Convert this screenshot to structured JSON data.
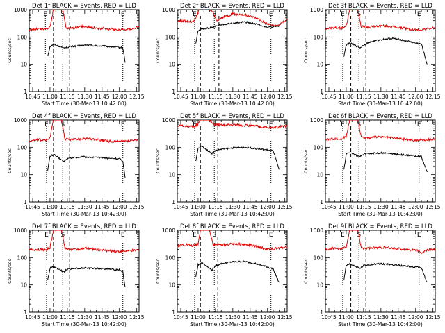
{
  "figure": {
    "title_suffix": "BLACK = Events, RED = LLD",
    "xlabel": "Start Time (30-Mar-13 10:42:00)",
    "ylabel": "Counts/sec",
    "x_ticks": [
      "10:45",
      "11:00",
      "11:15",
      "11:30",
      "11:45",
      "12:00",
      "12:15"
    ],
    "y_ticks": [
      "1",
      "10",
      "100",
      "1000"
    ],
    "marker_labels": {
      "start": "E",
      "s": "S",
      "end": "E"
    },
    "colors": {
      "events": "#000000",
      "lld": "#e00000",
      "axes": "#000000",
      "background": "#ffffff"
    }
  },
  "chart_data": [
    {
      "type": "line",
      "detector": "Det 1f",
      "title": "Det 1f BLACK = Events, RED = LLD",
      "xlabel": "Start Time (30-Mar-13 10:42:00)",
      "ylabel": "Counts/sec",
      "log_y": true,
      "ylim": [
        1,
        1000
      ],
      "x_range": [
        "10:42",
        "12:17"
      ],
      "vlines": {
        "dotted": [
          "10:56",
          "11:11",
          "12:03"
        ],
        "dashed": [
          "11:03",
          "11:17"
        ]
      },
      "series": [
        {
          "name": "Events",
          "color": "#000000",
          "gap": [
            "11:04",
            "11:12"
          ],
          "x": [
            "10:58",
            "11:00",
            "11:03",
            "11:12",
            "11:14",
            "11:20",
            "11:30",
            "11:40",
            "11:50",
            "11:58",
            "12:03",
            "12:05"
          ],
          "y": [
            20,
            45,
            55,
            40,
            42,
            45,
            50,
            48,
            45,
            42,
            40,
            12
          ]
        },
        {
          "name": "LLD",
          "color": "#e00000",
          "x": [
            "10:42",
            "10:50",
            "10:56",
            "11:00",
            "11:03",
            "11:05",
            "11:07",
            "11:09",
            "11:11",
            "11:14",
            "11:20",
            "11:30",
            "11:40",
            "11:50",
            "12:00",
            "12:10",
            "12:17"
          ],
          "y": [
            180,
            200,
            190,
            230,
            1000,
            1000,
            1000,
            1000,
            1000,
            210,
            220,
            250,
            210,
            200,
            180,
            200,
            230
          ]
        }
      ]
    },
    {
      "type": "line",
      "detector": "Det 2f",
      "title": "Det 2f BLACK = Events, RED = LLD",
      "xlabel": "Start Time (30-Mar-13 10:42:00)",
      "ylabel": "Counts/sec",
      "log_y": true,
      "ylim": [
        1,
        1000
      ],
      "x_range": [
        "10:42",
        "12:17"
      ],
      "vlines": {
        "dotted": [
          "10:57",
          "11:14",
          "12:03"
        ],
        "dashed": [
          "11:02",
          "11:18"
        ]
      },
      "series": [
        {
          "name": "Events",
          "color": "#000000",
          "gap": [
            "11:04",
            "11:12"
          ],
          "x": [
            "10:58",
            "11:00",
            "11:03",
            "11:12",
            "11:15",
            "11:20",
            "11:30",
            "11:40",
            "11:50",
            "12:00",
            "12:05",
            "12:10"
          ],
          "y": [
            60,
            170,
            200,
            220,
            250,
            280,
            320,
            360,
            300,
            230,
            230,
            250
          ]
        },
        {
          "name": "LLD",
          "color": "#e00000",
          "x": [
            "10:42",
            "10:50",
            "10:56",
            "10:59",
            "11:01",
            "11:03",
            "11:06",
            "11:09",
            "11:12",
            "11:15",
            "11:17",
            "11:20",
            "11:25",
            "11:30",
            "11:40",
            "11:50",
            "12:00",
            "12:08",
            "12:17"
          ],
          "y": [
            400,
            380,
            350,
            600,
            1000,
            1000,
            1000,
            1000,
            900,
            500,
            380,
            500,
            600,
            700,
            650,
            500,
            300,
            250,
            450
          ]
        }
      ]
    },
    {
      "type": "line",
      "detector": "Det 3f",
      "title": "Det 3f BLACK = Events, RED = LLD",
      "xlabel": "Start Time (30-Mar-13 10:42:00)",
      "ylabel": "Counts/sec",
      "log_y": true,
      "ylim": [
        1,
        1000
      ],
      "x_range": [
        "10:42",
        "12:17"
      ],
      "vlines": {
        "dotted": [
          "10:57",
          "11:11",
          "12:03"
        ],
        "dashed": [
          "11:04",
          "11:17"
        ]
      },
      "series": [
        {
          "name": "Events",
          "color": "#000000",
          "gap": [
            "11:04",
            "11:12"
          ],
          "x": [
            "10:58",
            "11:00",
            "11:03",
            "11:12",
            "11:15",
            "11:20",
            "11:30",
            "11:40",
            "11:50",
            "12:00",
            "12:05",
            "12:10"
          ],
          "y": [
            20,
            50,
            60,
            40,
            50,
            65,
            80,
            90,
            75,
            60,
            55,
            10
          ]
        },
        {
          "name": "LLD",
          "color": "#e00000",
          "x": [
            "10:42",
            "10:50",
            "10:56",
            "11:00",
            "11:03",
            "11:05",
            "11:08",
            "11:10",
            "11:13",
            "11:20",
            "11:30",
            "11:40",
            "11:50",
            "12:00",
            "12:10",
            "12:17"
          ],
          "y": [
            200,
            220,
            210,
            250,
            1000,
            1000,
            1000,
            1000,
            240,
            230,
            260,
            240,
            210,
            180,
            200,
            220
          ]
        }
      ]
    },
    {
      "type": "line",
      "detector": "Det 4f",
      "title": "Det 4f BLACK = Events, RED = LLD",
      "xlabel": "Start Time (30-Mar-13 10:42:00)",
      "ylabel": "Counts/sec",
      "log_y": true,
      "ylim": [
        1,
        1000
      ],
      "x_range": [
        "10:42",
        "12:17"
      ],
      "vlines": {
        "dotted": [
          "10:57",
          "11:11",
          "12:03"
        ],
        "dashed": [
          "11:03",
          "11:17"
        ]
      },
      "series": [
        {
          "name": "Events",
          "color": "#000000",
          "gap": [
            "11:04",
            "11:12"
          ],
          "x": [
            "10:58",
            "11:00",
            "11:03",
            "11:12",
            "11:15",
            "11:20",
            "11:30",
            "11:40",
            "11:50",
            "12:00",
            "12:03",
            "12:05"
          ],
          "y": [
            15,
            45,
            55,
            30,
            38,
            42,
            45,
            42,
            40,
            38,
            30,
            8
          ]
        },
        {
          "name": "LLD",
          "color": "#e00000",
          "x": [
            "10:42",
            "10:50",
            "10:56",
            "11:00",
            "11:03",
            "11:05",
            "11:08",
            "11:10",
            "11:13",
            "11:20",
            "11:30",
            "11:40",
            "11:50",
            "12:00",
            "12:10",
            "12:17"
          ],
          "y": [
            170,
            190,
            180,
            220,
            1000,
            1000,
            1000,
            1000,
            200,
            190,
            210,
            190,
            170,
            160,
            170,
            190
          ]
        }
      ]
    },
    {
      "type": "line",
      "detector": "Det 5f",
      "title": "Det 5f BLACK = Events, RED = LLD",
      "xlabel": "Start Time (30-Mar-13 10:42:00)",
      "ylabel": "Counts/sec",
      "log_y": true,
      "ylim": [
        1,
        1000
      ],
      "x_range": [
        "10:42",
        "12:17"
      ],
      "vlines": {
        "dotted": [
          "10:57",
          "11:14",
          "12:03"
        ],
        "dashed": [
          "11:02",
          "11:17"
        ]
      },
      "series": [
        {
          "name": "Events",
          "color": "#000000",
          "gap": [
            "11:04",
            "11:12"
          ],
          "x": [
            "10:58",
            "11:00",
            "11:03",
            "11:12",
            "11:15",
            "11:20",
            "11:30",
            "11:40",
            "11:50",
            "12:00",
            "12:05",
            "12:10"
          ],
          "y": [
            30,
            90,
            110,
            60,
            75,
            85,
            95,
            100,
            90,
            80,
            75,
            15
          ]
        },
        {
          "name": "LLD",
          "color": "#e00000",
          "x": [
            "10:42",
            "10:50",
            "10:56",
            "11:00",
            "11:02",
            "11:04",
            "11:07",
            "11:10",
            "11:13",
            "11:20",
            "11:30",
            "11:40",
            "11:50",
            "12:00",
            "12:10",
            "12:17"
          ],
          "y": [
            600,
            620,
            560,
            700,
            1000,
            1000,
            1000,
            1000,
            700,
            650,
            680,
            640,
            600,
            520,
            560,
            620
          ]
        }
      ]
    },
    {
      "type": "line",
      "detector": "Det 6f",
      "title": "Det 6f BLACK = Events, RED = LLD",
      "xlabel": "Start Time (30-Mar-13 10:42:00)",
      "ylabel": "Counts/sec",
      "log_y": true,
      "ylim": [
        1,
        1000
      ],
      "x_range": [
        "10:42",
        "12:17"
      ],
      "vlines": {
        "dotted": [
          "10:57",
          "11:11",
          "12:03"
        ],
        "dashed": [
          "11:04",
          "11:17"
        ]
      },
      "series": [
        {
          "name": "Events",
          "color": "#000000",
          "gap": [
            "11:04",
            "11:12"
          ],
          "x": [
            "10:58",
            "11:00",
            "11:03",
            "11:12",
            "11:15",
            "11:20",
            "11:30",
            "11:40",
            "11:50",
            "12:00",
            "12:05",
            "12:10"
          ],
          "y": [
            15,
            55,
            65,
            45,
            55,
            60,
            62,
            58,
            52,
            48,
            45,
            12
          ]
        },
        {
          "name": "LLD",
          "color": "#e00000",
          "x": [
            "10:42",
            "10:50",
            "10:56",
            "11:00",
            "11:03",
            "11:05",
            "11:08",
            "11:10",
            "11:13",
            "11:20",
            "11:30",
            "11:40",
            "11:50",
            "12:00",
            "12:10",
            "12:17"
          ],
          "y": [
            190,
            210,
            200,
            260,
            1000,
            1000,
            1000,
            1000,
            230,
            220,
            240,
            220,
            200,
            180,
            190,
            210
          ]
        }
      ]
    },
    {
      "type": "line",
      "detector": "Det 7f",
      "title": "Det 7f BLACK = Events, RED = LLD",
      "xlabel": "Start Time (30-Mar-13 10:42:00)",
      "ylabel": "Counts/sec",
      "log_y": true,
      "ylim": [
        1,
        1000
      ],
      "x_range": [
        "10:42",
        "12:17"
      ],
      "vlines": {
        "dotted": [
          "10:57",
          "11:11",
          "12:03"
        ],
        "dashed": [
          "11:03",
          "11:17"
        ]
      },
      "series": [
        {
          "name": "Events",
          "color": "#000000",
          "gap": [
            "11:04",
            "11:12"
          ],
          "x": [
            "10:58",
            "11:00",
            "11:03",
            "11:12",
            "11:15",
            "11:20",
            "11:30",
            "11:40",
            "11:50",
            "12:00",
            "12:03",
            "12:05"
          ],
          "y": [
            15,
            40,
            48,
            30,
            38,
            40,
            42,
            40,
            38,
            36,
            30,
            8
          ]
        },
        {
          "name": "LLD",
          "color": "#e00000",
          "x": [
            "10:42",
            "10:50",
            "10:56",
            "11:00",
            "11:03",
            "11:05",
            "11:08",
            "11:10",
            "11:13",
            "11:20",
            "11:30",
            "11:40",
            "11:50",
            "12:00",
            "12:10",
            "12:17"
          ],
          "y": [
            190,
            200,
            190,
            230,
            1000,
            1000,
            1000,
            1000,
            210,
            200,
            220,
            200,
            180,
            170,
            180,
            190
          ]
        }
      ]
    },
    {
      "type": "line",
      "detector": "Det 8f",
      "title": "Det 8f BLACK = Events, RED = LLD",
      "xlabel": "Start Time (30-Mar-13 10:42:00)",
      "ylabel": "Counts/sec",
      "log_y": true,
      "ylim": [
        1,
        1000
      ],
      "x_range": [
        "10:42",
        "12:17"
      ],
      "vlines": {
        "dotted": [
          "10:57",
          "11:14",
          "12:03"
        ],
        "dashed": [
          "11:02",
          "11:17"
        ]
      },
      "series": [
        {
          "name": "Events",
          "color": "#000000",
          "gap": [
            "11:04",
            "11:12"
          ],
          "x": [
            "10:58",
            "11:00",
            "11:03",
            "11:12",
            "11:15",
            "11:20",
            "11:30",
            "11:40",
            "11:50",
            "12:00",
            "12:05",
            "12:10"
          ],
          "y": [
            20,
            55,
            65,
            35,
            50,
            60,
            70,
            72,
            60,
            45,
            38,
            12
          ]
        },
        {
          "name": "LLD",
          "color": "#e00000",
          "x": [
            "10:42",
            "10:50",
            "10:56",
            "11:00",
            "11:02",
            "11:04",
            "11:07",
            "11:10",
            "11:13",
            "11:20",
            "11:30",
            "11:40",
            "11:50",
            "12:00",
            "12:10",
            "12:17"
          ],
          "y": [
            280,
            300,
            270,
            320,
            1000,
            1000,
            1000,
            1000,
            300,
            290,
            320,
            300,
            260,
            200,
            220,
            250
          ]
        }
      ]
    },
    {
      "type": "line",
      "detector": "Det 9f",
      "title": "Det 9f BLACK = Events, RED = LLD",
      "xlabel": "Start Time (30-Mar-13 10:42:00)",
      "ylabel": "Counts/sec",
      "log_y": true,
      "ylim": [
        1,
        1000
      ],
      "x_range": [
        "10:42",
        "12:17"
      ],
      "vlines": {
        "dotted": [
          "10:57",
          "11:11",
          "12:03"
        ],
        "dashed": [
          "11:04",
          "11:17"
        ]
      },
      "series": [
        {
          "name": "Events",
          "color": "#000000",
          "gap": [
            "11:04",
            "11:12"
          ],
          "x": [
            "10:58",
            "11:00",
            "11:03",
            "11:12",
            "11:15",
            "11:20",
            "11:30",
            "11:40",
            "11:50",
            "12:00",
            "12:05",
            "12:10"
          ],
          "y": [
            15,
            50,
            60,
            40,
            50,
            55,
            60,
            55,
            50,
            45,
            42,
            12
          ]
        },
        {
          "name": "LLD",
          "color": "#e00000",
          "x": [
            "10:42",
            "10:50",
            "10:56",
            "11:00",
            "11:03",
            "11:05",
            "11:08",
            "11:10",
            "11:13",
            "11:20",
            "11:30",
            "11:40",
            "11:50",
            "12:00",
            "12:05",
            "12:10",
            "12:17"
          ],
          "y": [
            200,
            220,
            210,
            250,
            1000,
            1000,
            1000,
            1000,
            230,
            220,
            240,
            220,
            200,
            190,
            150,
            190,
            200
          ]
        }
      ]
    }
  ]
}
